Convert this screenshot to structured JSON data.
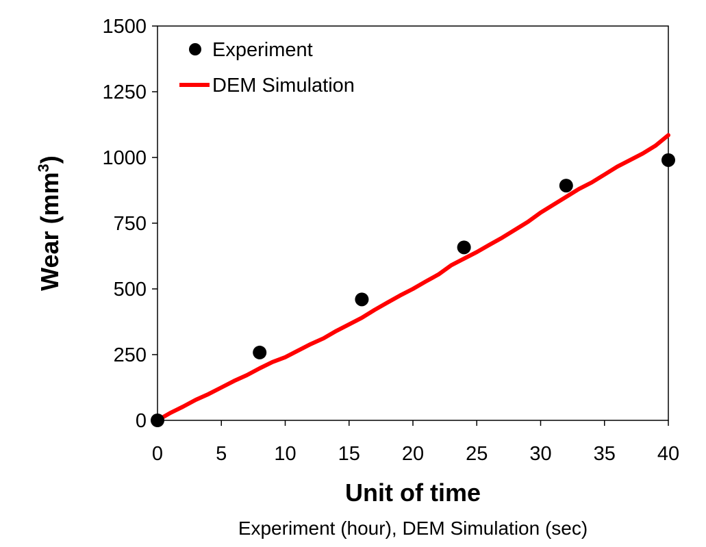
{
  "chart_data": {
    "type": "scatter",
    "title": "",
    "xlabel": "Unit of time",
    "xlabel_sub": "Experiment (hour), DEM Simulation (sec)",
    "ylabel_main": "Wear (mm",
    "ylabel_sup": "3",
    "ylabel_close": ")",
    "xlim": [
      0,
      40
    ],
    "ylim": [
      0,
      1500
    ],
    "xticks": [
      0,
      5,
      10,
      15,
      20,
      25,
      30,
      35,
      40
    ],
    "yticks": [
      0,
      250,
      500,
      750,
      1000,
      1250,
      1500
    ],
    "grid": false,
    "legend_position": "top-left",
    "series": [
      {
        "name": "Experiment",
        "type": "scatter",
        "color": "#000000",
        "x": [
          0,
          8,
          16,
          24,
          32,
          40
        ],
        "y": [
          0,
          258,
          460,
          658,
          893,
          990
        ]
      },
      {
        "name": "DEM Simulation",
        "type": "line",
        "color": "#ff0000",
        "x": [
          0,
          1,
          2,
          3,
          4,
          5,
          6,
          7,
          8,
          9,
          10,
          11,
          12,
          13,
          14,
          15,
          16,
          17,
          18,
          19,
          20,
          21,
          22,
          23,
          24,
          25,
          26,
          27,
          28,
          29,
          30,
          31,
          32,
          33,
          34,
          35,
          36,
          37,
          38,
          39,
          40
        ],
        "y": [
          0,
          28,
          52,
          78,
          100,
          125,
          150,
          172,
          198,
          222,
          240,
          265,
          290,
          312,
          340,
          365,
          390,
          420,
          448,
          475,
          500,
          528,
          555,
          590,
          615,
          640,
          668,
          695,
          725,
          755,
          790,
          820,
          850,
          880,
          905,
          935,
          965,
          990,
          1015,
          1045,
          1085
        ]
      }
    ]
  }
}
